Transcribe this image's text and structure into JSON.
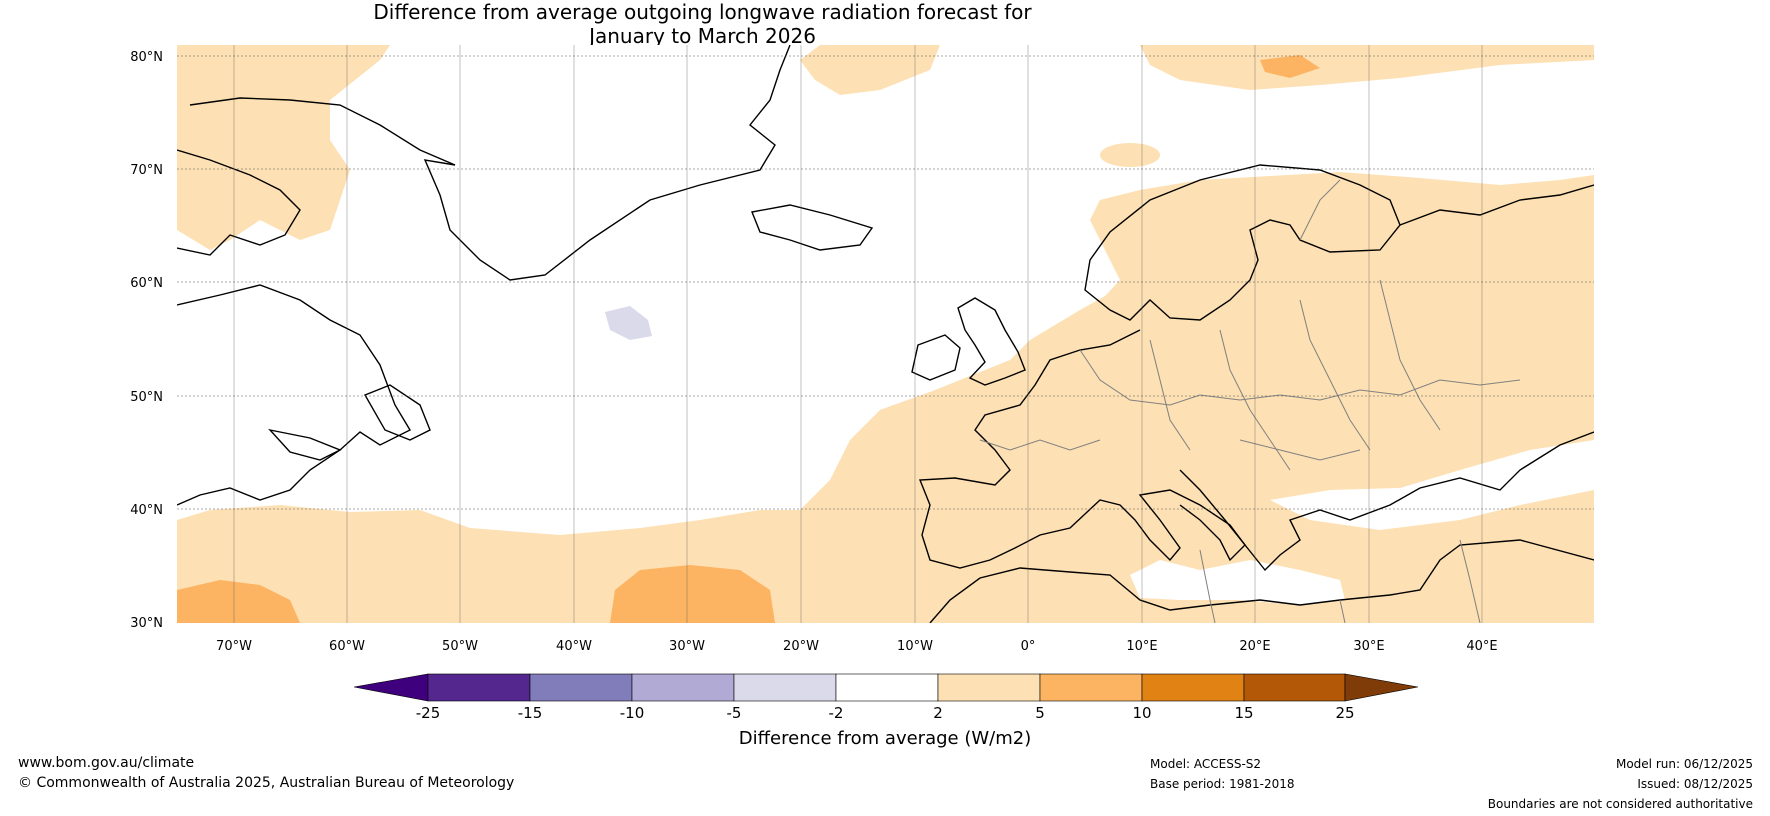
{
  "title": {
    "line1": "Difference from average outgoing longwave radiation forecast for",
    "line2": "January to March 2026"
  },
  "map": {
    "lat_labels": [
      "80°N",
      "70°N",
      "60°N",
      "50°N",
      "40°N",
      "30°N"
    ],
    "lon_labels": [
      "70°W",
      "60°W",
      "50°W",
      "40°W",
      "30°W",
      "20°W",
      "10°W",
      "0°",
      "10°E",
      "20°E",
      "30°E",
      "40°E"
    ],
    "colors": {
      "coast": "#000000",
      "border": "#808080",
      "grid": "#555555"
    }
  },
  "colorbar": {
    "ticks": [
      "-25",
      "-15",
      "-10",
      "-5",
      "-2",
      "2",
      "5",
      "10",
      "15",
      "25"
    ],
    "colors": [
      "#3f007d",
      "#54278f",
      "#807dba",
      "#b1aad4",
      "#dadaeb",
      "#ffffff",
      "#fde0b3",
      "#fdb462",
      "#e08214",
      "#b35806",
      "#7f3b08"
    ],
    "label": "Difference from average (W/m2)"
  },
  "footer": {
    "url": "www.bom.gov.au/climate",
    "copyright": "© Commonwealth of Australia 2025, Australian Bureau of Meteorology",
    "model": "Model: ACCESS-S2",
    "base_period": "Base period: 1981-2018",
    "model_run": "Model run: 06/12/2025",
    "issued": "Issued: 08/12/2025",
    "disclaimer": "Boundaries are not considered authoritative"
  }
}
